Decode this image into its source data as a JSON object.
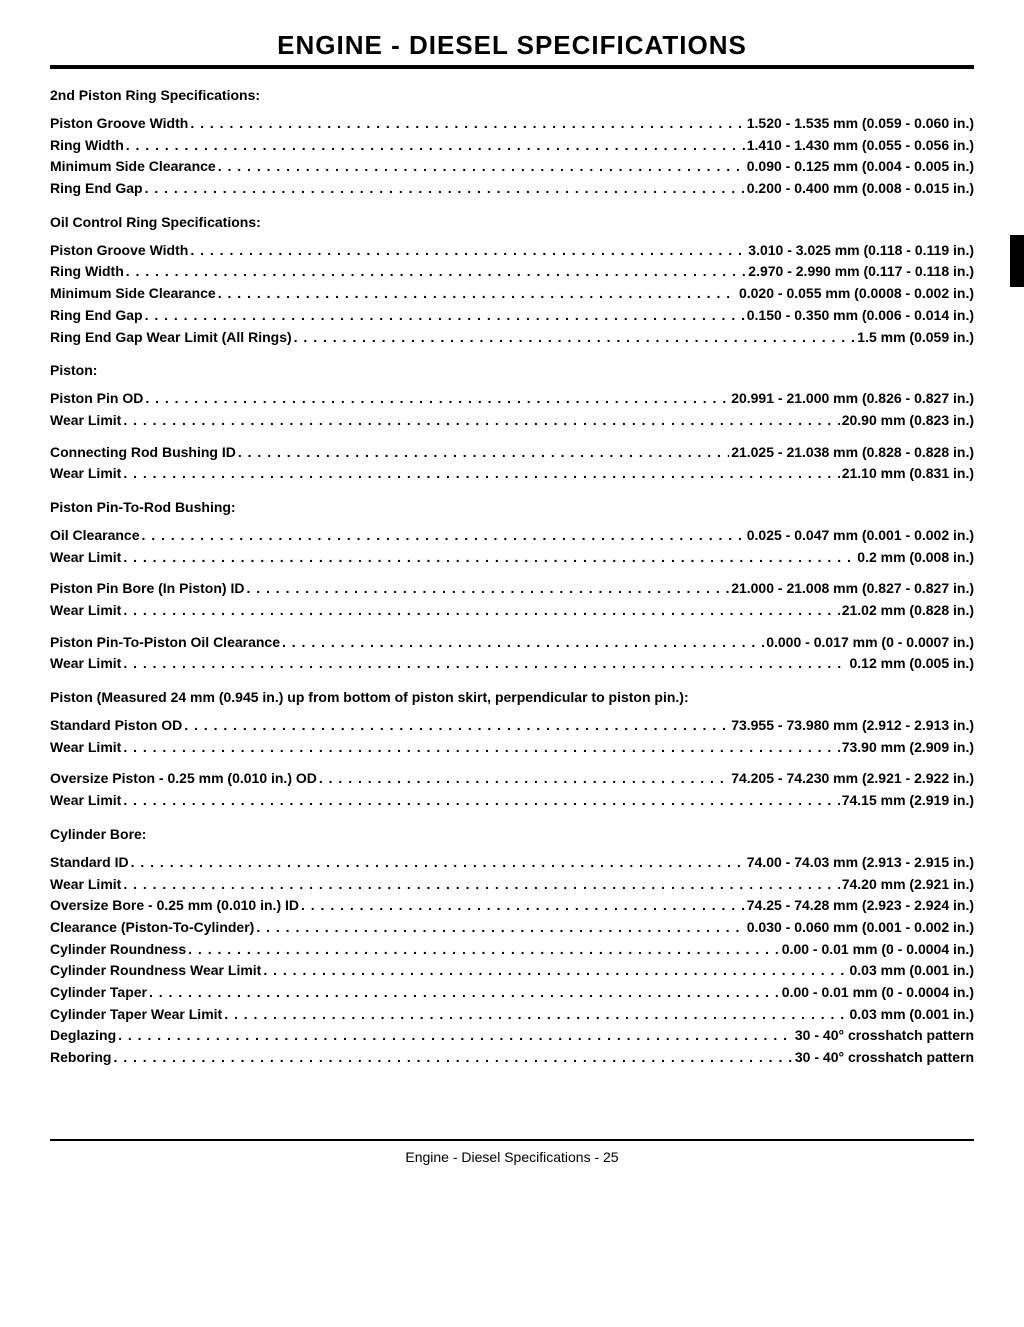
{
  "title": "ENGINE - DIESEL   SPECIFICATIONS",
  "footer": "Engine - Diesel   Specifications  - 25",
  "sections": [
    {
      "heading": "2nd Piston Ring Specifications:",
      "rows": [
        {
          "label": "Piston Groove Width",
          "value": "1.520 - 1.535 mm (0.059 - 0.060 in.)"
        },
        {
          "label": "Ring Width",
          "value": "1.410 - 1.430 mm (0.055 - 0.056 in.)"
        },
        {
          "label": "Minimum Side Clearance",
          "value": "0.090 - 0.125 mm (0.004 - 0.005 in.)"
        },
        {
          "label": "Ring End Gap",
          "value": "0.200 - 0.400 mm (0.008 - 0.015 in.)"
        }
      ]
    },
    {
      "heading": "Oil Control Ring Specifications:",
      "rows": [
        {
          "label": "Piston Groove Width",
          "value": "3.010 - 3.025 mm (0.118 - 0.119 in.)"
        },
        {
          "label": "Ring Width",
          "value": "2.970 - 2.990 mm (0.117 - 0.118 in.)"
        },
        {
          "label": "Minimum Side Clearance",
          "value": "0.020 - 0.055 mm (0.0008 - 0.002 in.)"
        },
        {
          "label": "Ring End Gap",
          "value": "0.150 - 0.350 mm (0.006 - 0.014 in.)"
        },
        {
          "label": "Ring End Gap Wear Limit (All Rings)",
          "value": "1.5 mm (0.059 in.)"
        }
      ]
    },
    {
      "heading": "Piston:",
      "rows": [
        {
          "label": "Piston Pin OD",
          "value": "20.991 - 21.000 mm (0.826 - 0.827 in.)"
        },
        {
          "label": "Wear Limit",
          "value": "20.90 mm (0.823 in.)"
        },
        {
          "gap": true
        },
        {
          "label": "Connecting Rod Bushing ID",
          "value": "21.025 - 21.038 mm (0.828 - 0.828 in.)"
        },
        {
          "label": "Wear Limit",
          "value": "21.10 mm (0.831 in.)"
        }
      ]
    },
    {
      "heading": "Piston Pin-To-Rod Bushing:",
      "rows": [
        {
          "label": "Oil Clearance",
          "value": "0.025 - 0.047 mm (0.001 - 0.002 in.)"
        },
        {
          "label": "Wear Limit",
          "value": "0.2 mm (0.008 in.)"
        },
        {
          "gap": true
        },
        {
          "label": "Piston Pin Bore (In Piston) ID",
          "value": "21.000 - 21.008 mm (0.827 - 0.827 in.)"
        },
        {
          "label": "Wear Limit",
          "value": "21.02 mm (0.828 in.)"
        },
        {
          "gap": true
        },
        {
          "label": "Piston Pin-To-Piston Oil Clearance",
          "value": "0.000 - 0.017 mm (0 - 0.0007 in.)"
        },
        {
          "label": "Wear Limit",
          "value": "0.12 mm (0.005 in.)"
        }
      ]
    },
    {
      "heading": "Piston (Measured 24 mm (0.945 in.) up from bottom of piston skirt, perpendicular to piston pin.):",
      "rows": [
        {
          "label": "Standard Piston OD",
          "value": "73.955 - 73.980 mm (2.912 - 2.913 in.)"
        },
        {
          "label": "Wear Limit",
          "value": "73.90 mm (2.909 in.)"
        },
        {
          "gap": true
        },
        {
          "label": "Oversize Piston - 0.25 mm (0.010 in.) OD",
          "value": "74.205 - 74.230 mm (2.921 - 2.922 in.)"
        },
        {
          "label": "Wear Limit",
          "value": "74.15 mm (2.919 in.)"
        }
      ]
    },
    {
      "heading": "Cylinder Bore:",
      "rows": [
        {
          "label": "Standard ID",
          "value": "74.00 - 74.03 mm (2.913 - 2.915 in.)"
        },
        {
          "label": "Wear Limit",
          "value": "74.20 mm (2.921 in.)"
        },
        {
          "label": "Oversize Bore - 0.25 mm (0.010 in.) ID",
          "value": "74.25 - 74.28 mm (2.923 - 2.924 in.)"
        },
        {
          "label": "Clearance (Piston-To-Cylinder)",
          "value": "0.030 - 0.060 mm (0.001 - 0.002 in.)"
        },
        {
          "label": "Cylinder Roundness",
          "value": "0.00 - 0.01 mm (0 - 0.0004 in.)"
        },
        {
          "label": "Cylinder Roundness Wear Limit",
          "value": "0.03 mm (0.001 in.)"
        },
        {
          "label": "Cylinder Taper",
          "value": "0.00 - 0.01 mm (0 - 0.0004 in.)"
        },
        {
          "label": "Cylinder Taper Wear Limit",
          "value": "0.03 mm (0.001 in.)"
        },
        {
          "label": "Deglazing",
          "value": "30 - 40° crosshatch pattern"
        },
        {
          "label": "Reboring",
          "value": "30 - 40° crosshatch pattern"
        }
      ]
    }
  ]
}
